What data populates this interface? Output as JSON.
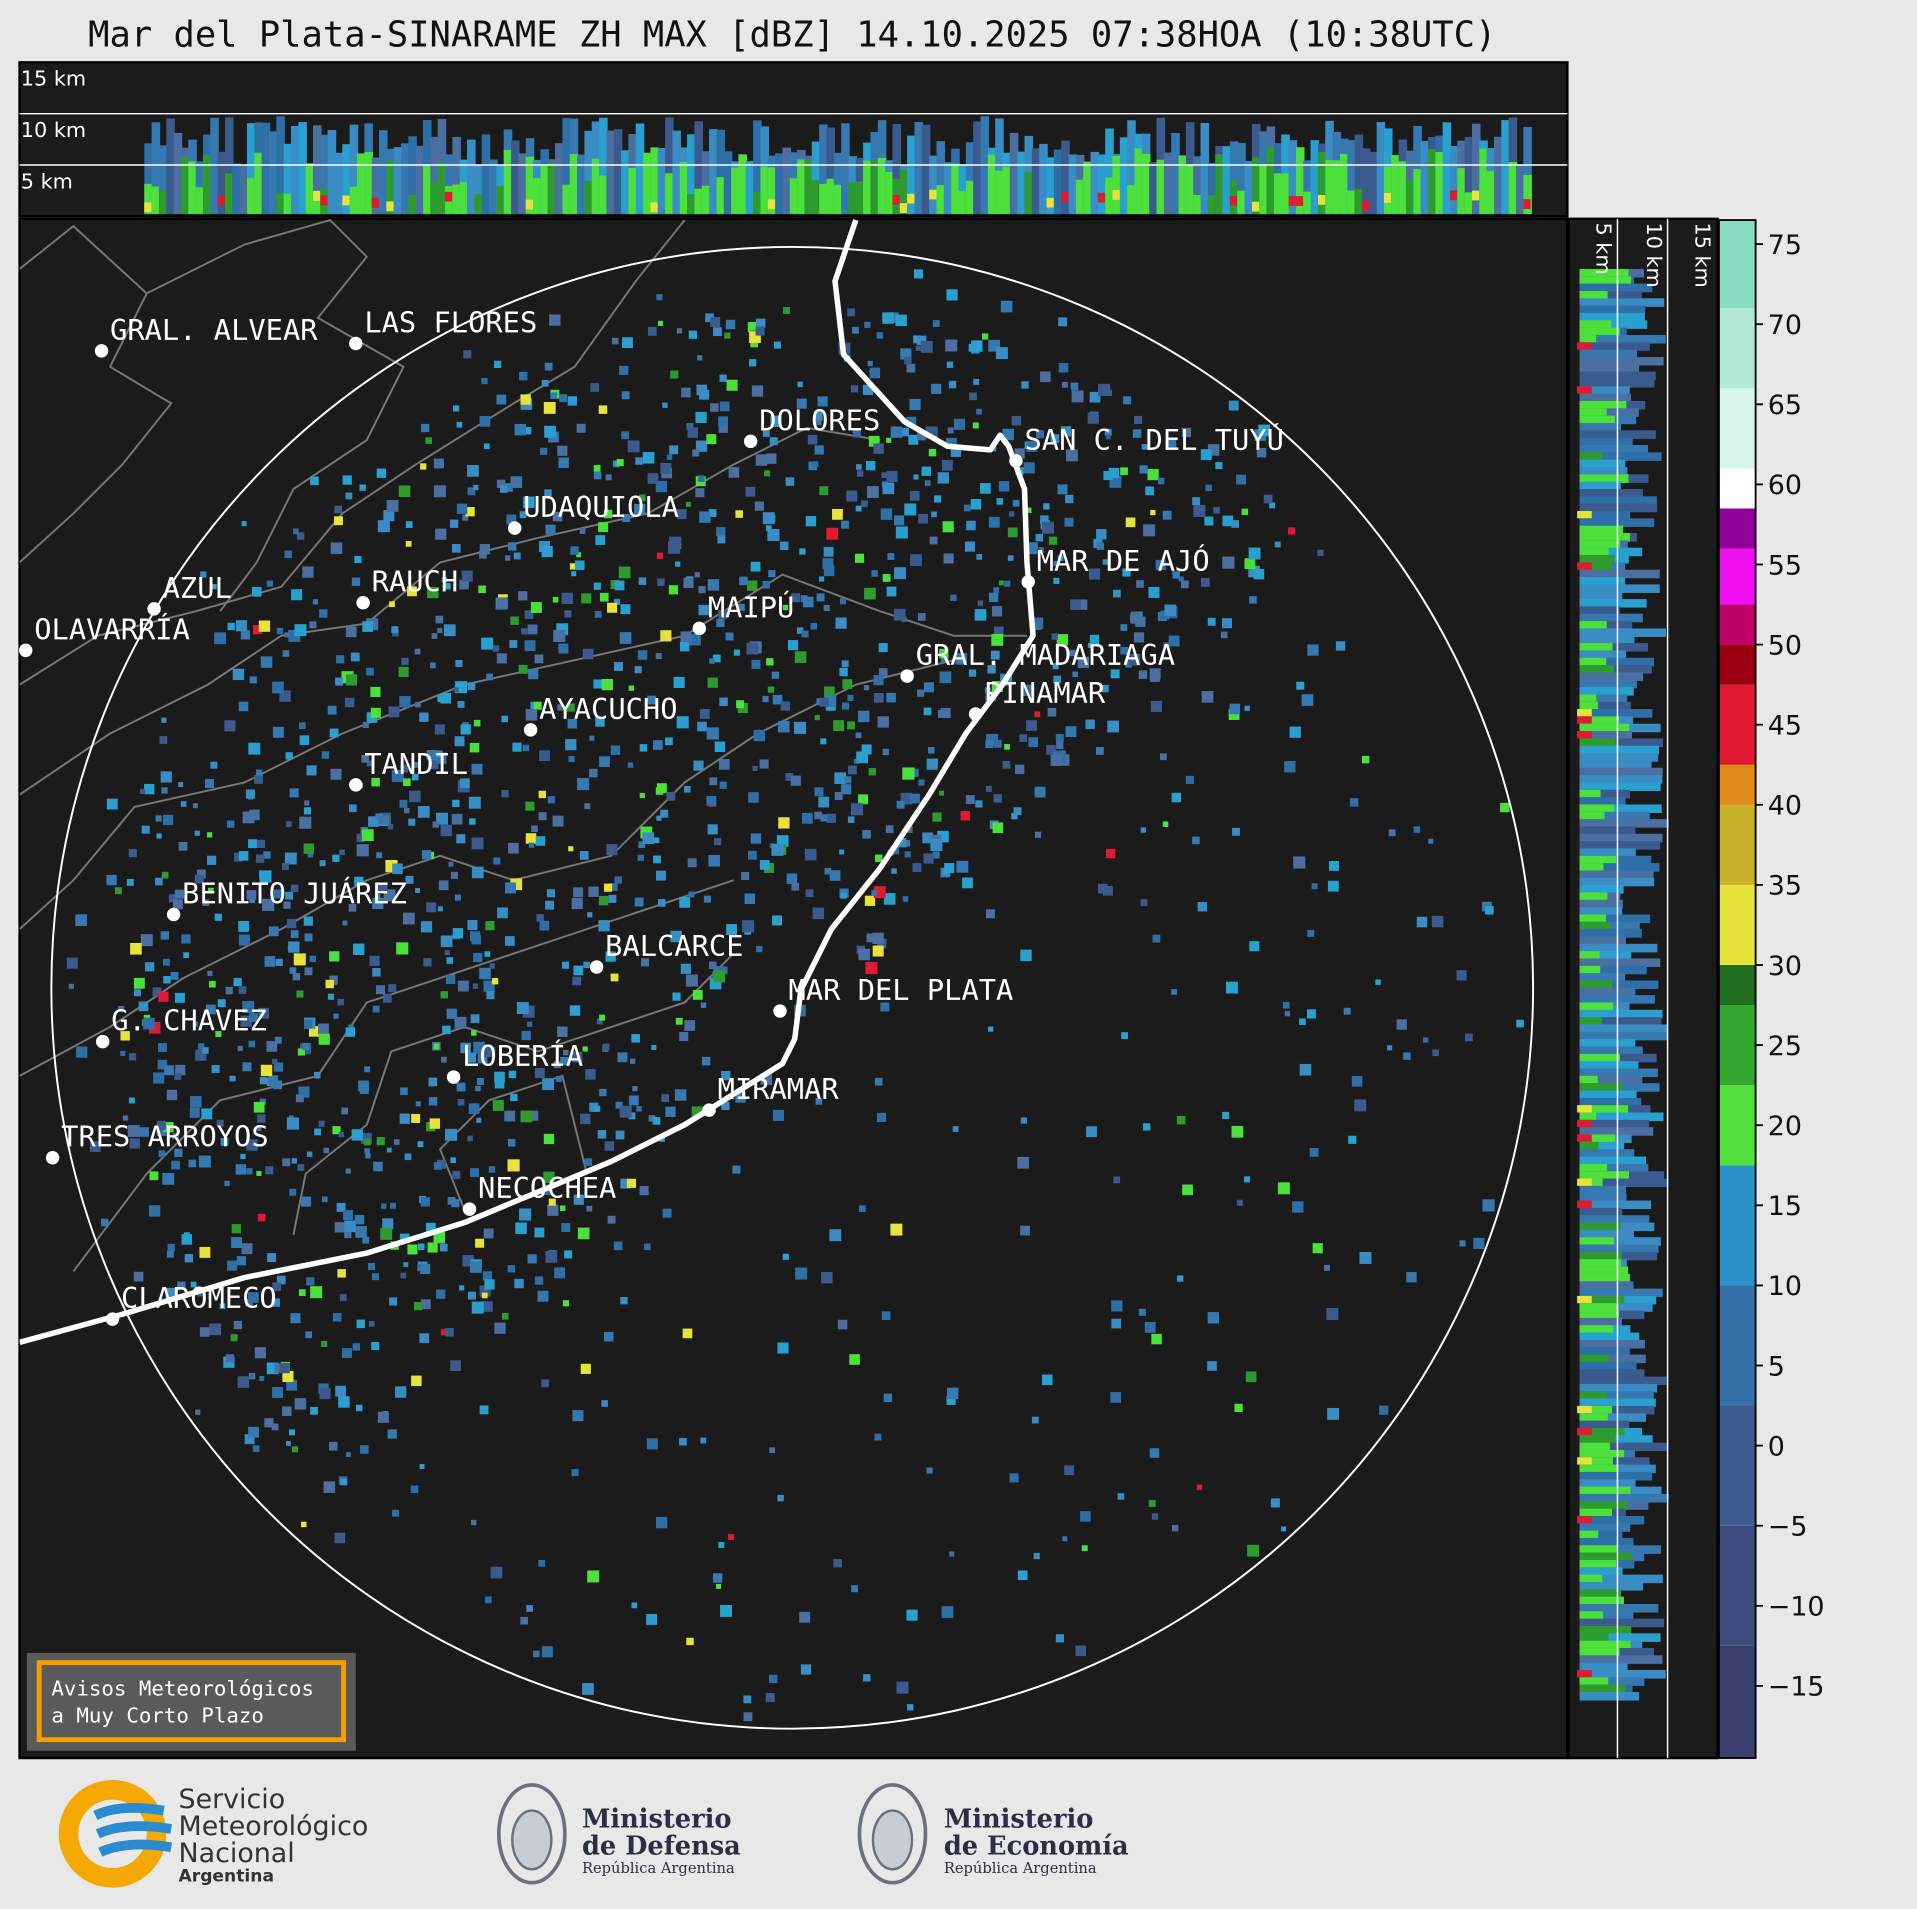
{
  "title": "Mar del Plata-SINARAME ZH MAX [dBZ] 14.10.2025 07:38HOA (10:38UTC)",
  "top_panel": {
    "height_labels": [
      "15 km",
      "10 km",
      "5 km"
    ]
  },
  "side_panel": {
    "height_labels": [
      "5 km",
      "10 km",
      "15 km"
    ]
  },
  "cities": [
    "GRAL. ALVEAR",
    "LAS FLORES",
    "DOLORES",
    "SAN C. DEL TUYÚ",
    "UDAQUIOLA",
    "MAR DE AJÓ",
    "AZUL",
    "RAUCH",
    "MAIPÚ",
    "OLAVARRÍA",
    "GRAL. MADARIAGA",
    "PINAMAR",
    "AYACUCHO",
    "TANDIL",
    "BENITO JUÁREZ",
    "BALCARCE",
    "MAR DEL PLATA",
    "G. CHAVEZ",
    "LOBERÍA",
    "MIRAMAR",
    "TRES ARROYOS",
    "NECOCHEA",
    "CLAROMECO"
  ],
  "colorbar": {
    "lim": [
      -19.5,
      76.5
    ],
    "ticks": [
      75,
      70,
      65,
      60,
      55,
      50,
      45,
      40,
      35,
      30,
      25,
      20,
      15,
      10,
      5,
      0,
      {
        "value": -5,
        "label": "−5"
      },
      {
        "value": -10,
        "label": "−10"
      },
      {
        "value": -15,
        "label": "−15"
      }
    ],
    "segments": [
      {
        "from": -19.5,
        "to": -12.5,
        "color": "#3a3f6e"
      },
      {
        "from": -12.5,
        "to": -5,
        "color": "#3d4b7e"
      },
      {
        "from": -5,
        "to": 2.5,
        "color": "#3b5a8e"
      },
      {
        "from": 2.5,
        "to": 10,
        "color": "#3570a8"
      },
      {
        "from": 10,
        "to": 17.5,
        "color": "#2b92c8"
      },
      {
        "from": 17.5,
        "to": 22.5,
        "color": "#4fe03a"
      },
      {
        "from": 22.5,
        "to": 27.5,
        "color": "#34a52e"
      },
      {
        "from": 27.5,
        "to": 30,
        "color": "#216f1e"
      },
      {
        "from": 30,
        "to": 35,
        "color": "#e6e43a"
      },
      {
        "from": 35,
        "to": 40,
        "color": "#c8b22a"
      },
      {
        "from": 40,
        "to": 42.5,
        "color": "#e08a1a"
      },
      {
        "from": 42.5,
        "to": 47.5,
        "color": "#e01a30"
      },
      {
        "from": 47.5,
        "to": 50,
        "color": "#9c0010"
      },
      {
        "from": 50,
        "to": 52.5,
        "color": "#c0006a"
      },
      {
        "from": 52.5,
        "to": 56,
        "color": "#f010f0"
      },
      {
        "from": 56,
        "to": 58.5,
        "color": "#92009a"
      },
      {
        "from": 58.5,
        "to": 61,
        "color": "#ffffff"
      },
      {
        "from": 61,
        "to": 66,
        "color": "#d8f5ea"
      },
      {
        "from": 66,
        "to": 71,
        "color": "#b0ead6"
      },
      {
        "from": 71,
        "to": 76.5,
        "color": "#86dcc0"
      }
    ]
  },
  "warning_box": {
    "lines": [
      "Avisos Meteorológicos",
      "a Muy Corto Plazo"
    ]
  },
  "logos": {
    "smn": [
      "Servicio",
      "Meteorológico",
      "Nacional",
      "Argentina"
    ],
    "defensa": [
      "Ministerio",
      "de Defensa",
      "República Argentina"
    ],
    "economia": [
      "Ministerio",
      "de Economía",
      "República Argentina"
    ]
  }
}
